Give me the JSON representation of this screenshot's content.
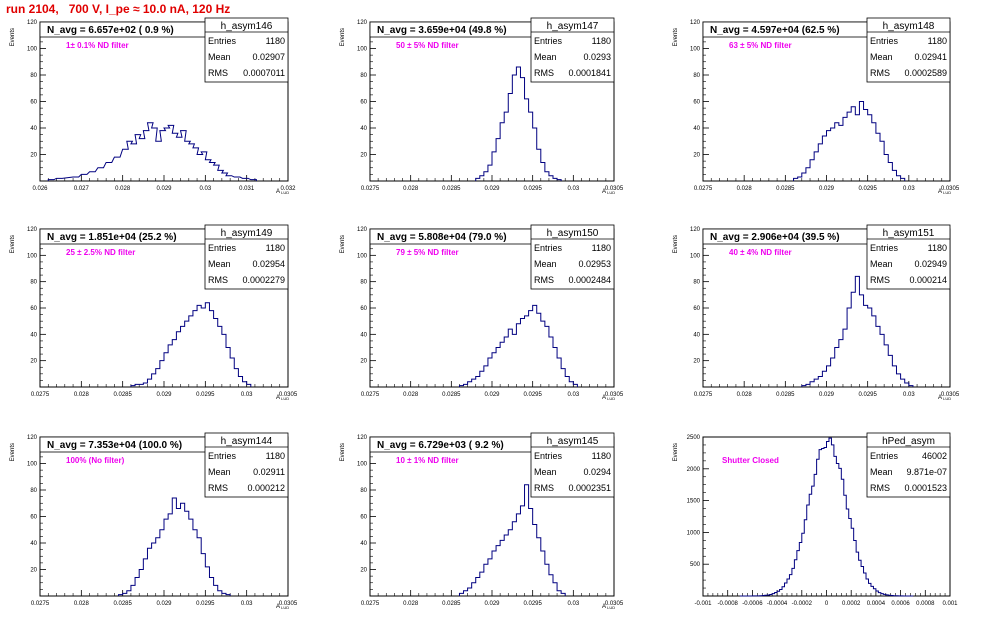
{
  "page": {
    "run_title": "run 2104,   700 V, I_pe ≈ 10.0 nA, 120 Hz",
    "colors": {
      "title": "#e00000",
      "note": "#ee00ee",
      "histogram": "#000080",
      "text": "#000000"
    }
  },
  "chart_data": [
    {
      "type": "histogram",
      "name": "h_asym146",
      "header": "N_avg = 6.657e+02 ( 0.9 %)",
      "note": "1± 0.1% ND filter",
      "xlabel": "A_LUD",
      "ylabel": "Events",
      "xlim": [
        0.026,
        0.032
      ],
      "ylim": [
        0,
        120
      ],
      "xticks": [
        0.026,
        0.027,
        0.028,
        0.029,
        0.03,
        0.031,
        0.032
      ],
      "xtick_labels": [
        "0.026",
        "0.027",
        "0.028",
        "0.029",
        "0.03",
        "0.031",
        "0.032"
      ],
      "yticks": [
        20,
        40,
        60,
        80,
        100,
        120
      ],
      "stats": {
        "Entries": "1180",
        "Mean": "0.02907",
        "RMS": "0.0007011"
      },
      "bins": [
        0.0262,
        0.0264,
        0.0268,
        0.027,
        0.0272,
        0.0274,
        0.0276,
        0.0278,
        0.028,
        0.0281,
        0.0282,
        0.0283,
        0.0284,
        0.0285,
        0.0286,
        0.0287,
        0.0288,
        0.0289,
        0.029,
        0.0291,
        0.0292,
        0.0293,
        0.0294,
        0.0295,
        0.0296,
        0.0297,
        0.0298,
        0.0299,
        0.03,
        0.0301,
        0.0302,
        0.0303,
        0.0304,
        0.0305,
        0.0307,
        0.0309,
        0.0311
      ],
      "values": [
        1,
        2,
        3,
        5,
        7,
        10,
        14,
        18,
        24,
        30,
        28,
        35,
        32,
        38,
        44,
        40,
        30,
        38,
        40,
        42,
        36,
        33,
        38,
        30,
        28,
        25,
        20,
        22,
        16,
        14,
        12,
        8,
        6,
        4,
        3,
        2,
        1
      ]
    },
    {
      "type": "histogram",
      "name": "h_asym147",
      "header": "N_avg = 3.659e+04 (49.8 %)",
      "note": "50 ± 5% ND filter",
      "xlabel": "A_LUD",
      "ylabel": "Events",
      "xlim": [
        0.0275,
        0.0305
      ],
      "ylim": [
        0,
        120
      ],
      "xticks": [
        0.0275,
        0.028,
        0.0285,
        0.029,
        0.0295,
        0.03,
        0.0305
      ],
      "xtick_labels": [
        "0.0275",
        "0.028",
        "0.0285",
        "0.029",
        "0.0295",
        "0.03",
        "0.0305"
      ],
      "yticks": [
        20,
        40,
        60,
        80,
        100,
        120
      ],
      "stats": {
        "Entries": "1180",
        "Mean": "0.0293",
        "RMS": "0.0001841"
      },
      "bins": [
        0.0288,
        0.02885,
        0.0289,
        0.02895,
        0.029,
        0.02905,
        0.0291,
        0.02915,
        0.0292,
        0.02925,
        0.0293,
        0.02935,
        0.0294,
        0.02945,
        0.0295,
        0.02955,
        0.0296,
        0.02965,
        0.0297,
        0.02975,
        0.0298
      ],
      "values": [
        2,
        4,
        7,
        12,
        22,
        32,
        44,
        52,
        66,
        80,
        86,
        78,
        62,
        52,
        40,
        24,
        14,
        7,
        4,
        2,
        1
      ]
    },
    {
      "type": "histogram",
      "name": "h_asym148",
      "header": "N_avg = 4.597e+04 (62.5 %)",
      "note": "63 ± 5% ND filter",
      "xlabel": "A_LUD",
      "ylabel": "Events",
      "xlim": [
        0.0275,
        0.0305
      ],
      "ylim": [
        0,
        120
      ],
      "xticks": [
        0.0275,
        0.028,
        0.0285,
        0.029,
        0.0295,
        0.03,
        0.0305
      ],
      "xtick_labels": [
        "0.0275",
        "0.028",
        "0.0285",
        "0.029",
        "0.0295",
        "0.03",
        "0.0305"
      ],
      "yticks": [
        20,
        40,
        60,
        80,
        100,
        120
      ],
      "stats": {
        "Entries": "1180",
        "Mean": "0.02941",
        "RMS": "0.0002589"
      },
      "bins": [
        0.0286,
        0.02865,
        0.0287,
        0.02875,
        0.0288,
        0.02885,
        0.0289,
        0.02895,
        0.029,
        0.02905,
        0.0291,
        0.02915,
        0.0292,
        0.02925,
        0.0293,
        0.02935,
        0.0294,
        0.02945,
        0.0295,
        0.02955,
        0.0296,
        0.02965,
        0.0297,
        0.02975,
        0.0298,
        0.02985,
        0.0299
      ],
      "values": [
        2,
        3,
        6,
        10,
        16,
        22,
        28,
        34,
        38,
        40,
        44,
        42,
        48,
        52,
        56,
        50,
        60,
        54,
        50,
        44,
        36,
        30,
        20,
        14,
        8,
        4,
        2
      ]
    },
    {
      "type": "histogram",
      "name": "h_asym149",
      "header": "N_avg = 1.851e+04 (25.2 %)",
      "note": "25 ± 2.5% ND filter",
      "xlabel": "A_LUD",
      "ylabel": "Events",
      "xlim": [
        0.0275,
        0.0305
      ],
      "ylim": [
        0,
        120
      ],
      "xticks": [
        0.0275,
        0.028,
        0.0285,
        0.029,
        0.0295,
        0.03,
        0.0305
      ],
      "xtick_labels": [
        "0.0275",
        "0.028",
        "0.0285",
        "0.029",
        "0.0295",
        "0.03",
        "0.0305"
      ],
      "yticks": [
        20,
        40,
        60,
        80,
        100,
        120
      ],
      "stats": {
        "Entries": "1180",
        "Mean": "0.02954",
        "RMS": "0.0002279"
      },
      "bins": [
        0.0286,
        0.02865,
        0.0287,
        0.02875,
        0.0288,
        0.02885,
        0.0289,
        0.02895,
        0.029,
        0.02905,
        0.0291,
        0.02915,
        0.0292,
        0.02925,
        0.0293,
        0.02935,
        0.0294,
        0.02945,
        0.0295,
        0.02955,
        0.0296,
        0.02965,
        0.0297,
        0.02975,
        0.0298,
        0.02985,
        0.0299,
        0.02995,
        0.03
      ],
      "values": [
        1,
        2,
        2,
        3,
        6,
        10,
        14,
        20,
        26,
        32,
        36,
        42,
        46,
        50,
        54,
        58,
        62,
        60,
        64,
        58,
        52,
        46,
        40,
        30,
        22,
        14,
        8,
        4,
        2
      ]
    },
    {
      "type": "histogram",
      "name": "h_asym150",
      "header": "N_avg = 5.808e+04 (79.0 %)",
      "note": "79 ± 5% ND filter",
      "xlabel": "A_LUD",
      "ylabel": "Events",
      "xlim": [
        0.0275,
        0.0305
      ],
      "ylim": [
        0,
        120
      ],
      "xticks": [
        0.0275,
        0.028,
        0.0285,
        0.029,
        0.0295,
        0.03,
        0.0305
      ],
      "xtick_labels": [
        "0.0275",
        "0.028",
        "0.0285",
        "0.029",
        "0.0295",
        "0.03",
        "0.0305"
      ],
      "yticks": [
        20,
        40,
        60,
        80,
        100,
        120
      ],
      "stats": {
        "Entries": "1180",
        "Mean": "0.02953",
        "RMS": "0.0002484"
      },
      "bins": [
        0.0286,
        0.02865,
        0.0287,
        0.02875,
        0.0288,
        0.02885,
        0.0289,
        0.02895,
        0.029,
        0.02905,
        0.0291,
        0.02915,
        0.0292,
        0.02925,
        0.0293,
        0.02935,
        0.0294,
        0.02945,
        0.0295,
        0.02955,
        0.0296,
        0.02965,
        0.0297,
        0.02975,
        0.0298,
        0.02985,
        0.0299,
        0.02995,
        0.03
      ],
      "values": [
        1,
        2,
        4,
        6,
        8,
        12,
        16,
        22,
        26,
        30,
        34,
        38,
        44,
        40,
        48,
        52,
        54,
        58,
        62,
        56,
        50,
        46,
        38,
        30,
        22,
        14,
        8,
        4,
        2
      ]
    },
    {
      "type": "histogram",
      "name": "h_asym151",
      "header": "N_avg = 2.906e+04 (39.5 %)",
      "note": "40 ± 4% ND filter",
      "xlabel": "A_LUD",
      "ylabel": "Events",
      "xlim": [
        0.0275,
        0.0305
      ],
      "ylim": [
        0,
        120
      ],
      "xticks": [
        0.0275,
        0.028,
        0.0285,
        0.029,
        0.0295,
        0.03,
        0.0305
      ],
      "xtick_labels": [
        "0.0275",
        "0.028",
        "0.0285",
        "0.029",
        "0.0295",
        "0.03",
        "0.0305"
      ],
      "yticks": [
        20,
        40,
        60,
        80,
        100,
        120
      ],
      "stats": {
        "Entries": "1180",
        "Mean": "0.02949",
        "RMS": "0.000214"
      },
      "bins": [
        0.0287,
        0.02875,
        0.0288,
        0.02885,
        0.0289,
        0.02895,
        0.029,
        0.02905,
        0.0291,
        0.02915,
        0.0292,
        0.02925,
        0.0293,
        0.02935,
        0.0294,
        0.02945,
        0.0295,
        0.02955,
        0.0296,
        0.02965,
        0.0297,
        0.02975,
        0.0298,
        0.02985,
        0.0299,
        0.02995,
        0.03
      ],
      "values": [
        1,
        2,
        4,
        6,
        8,
        12,
        16,
        22,
        30,
        36,
        44,
        60,
        72,
        84,
        70,
        62,
        60,
        54,
        46,
        40,
        32,
        24,
        16,
        10,
        6,
        3,
        1
      ]
    },
    {
      "type": "histogram",
      "name": "h_asym144",
      "header": "N_avg = 7.353e+04 (100.0 %)",
      "note": "100% (No filter)",
      "xlabel": "A_LUD",
      "ylabel": "Events",
      "xlim": [
        0.0275,
        0.0305
      ],
      "ylim": [
        0,
        120
      ],
      "xticks": [
        0.0275,
        0.028,
        0.0285,
        0.029,
        0.0295,
        0.03,
        0.0305
      ],
      "xtick_labels": [
        "0.0275",
        "0.028",
        "0.0285",
        "0.029",
        "0.0295",
        "0.03",
        "0.0305"
      ],
      "yticks": [
        20,
        40,
        60,
        80,
        100,
        120
      ],
      "stats": {
        "Entries": "1180",
        "Mean": "0.02911",
        "RMS": "0.000212"
      },
      "bins": [
        0.02845,
        0.0285,
        0.02855,
        0.0286,
        0.02865,
        0.0287,
        0.02875,
        0.0288,
        0.02885,
        0.0289,
        0.02895,
        0.029,
        0.02905,
        0.0291,
        0.02915,
        0.0292,
        0.02925,
        0.0293,
        0.02935,
        0.0294,
        0.02945,
        0.0295,
        0.02955,
        0.0296,
        0.02965,
        0.0297,
        0.02975
      ],
      "values": [
        1,
        2,
        4,
        8,
        14,
        20,
        28,
        36,
        40,
        44,
        50,
        58,
        62,
        74,
        66,
        70,
        64,
        58,
        50,
        44,
        32,
        22,
        14,
        8,
        4,
        2,
        1
      ]
    },
    {
      "type": "histogram",
      "name": "h_asym145",
      "header": "N_avg = 6.729e+03 ( 9.2 %)",
      "note": "10 ± 1% ND filter",
      "xlabel": "A_LUD",
      "ylabel": "Events",
      "xlim": [
        0.0275,
        0.0305
      ],
      "ylim": [
        0,
        120
      ],
      "xticks": [
        0.0275,
        0.028,
        0.0285,
        0.029,
        0.0295,
        0.03,
        0.0305
      ],
      "xtick_labels": [
        "0.0275",
        "0.028",
        "0.0285",
        "0.029",
        "0.0295",
        "0.03",
        "0.0305"
      ],
      "yticks": [
        20,
        40,
        60,
        80,
        100,
        120
      ],
      "stats": {
        "Entries": "1180",
        "Mean": "0.0294",
        "RMS": "0.0002351"
      },
      "bins": [
        0.0286,
        0.02865,
        0.0287,
        0.02875,
        0.0288,
        0.02885,
        0.0289,
        0.02895,
        0.029,
        0.02905,
        0.0291,
        0.02915,
        0.0292,
        0.02925,
        0.0293,
        0.02935,
        0.0294,
        0.02945,
        0.0295,
        0.02955,
        0.0296,
        0.02965,
        0.0297,
        0.02975,
        0.0298,
        0.02985
      ],
      "values": [
        2,
        4,
        6,
        10,
        14,
        18,
        24,
        28,
        34,
        38,
        42,
        46,
        50,
        56,
        62,
        68,
        84,
        66,
        54,
        44,
        34,
        24,
        16,
        10,
        4,
        2
      ]
    },
    {
      "type": "histogram",
      "name": "hPed_asym",
      "header": "",
      "note": "Shutter Closed",
      "xlabel": "",
      "ylabel": "Events",
      "xlim": [
        -0.001,
        0.001
      ],
      "ylim": [
        0,
        2500
      ],
      "xticks": [
        -0.001,
        -0.0008,
        -0.0006,
        -0.0004,
        -0.0002,
        0,
        0.0002,
        0.0004,
        0.0006,
        0.0008,
        0.001
      ],
      "xtick_labels": [
        "-0.001",
        "-0.0008",
        "-0.0006",
        "-0.0004",
        "-0.0002",
        "0",
        "0.0002",
        "0.0004",
        "0.0006",
        "0.0008",
        "0.001"
      ],
      "yticks": [
        500,
        1000,
        1500,
        2000,
        2500
      ],
      "stats": {
        "Entries": "46002",
        "Mean": "9.871e-07",
        "RMS": "0.0001523"
      },
      "gaussian": {
        "mean": 1e-06,
        "sigma": 0.0001523,
        "peak": 2430,
        "bin_width": 2e-05
      }
    }
  ]
}
